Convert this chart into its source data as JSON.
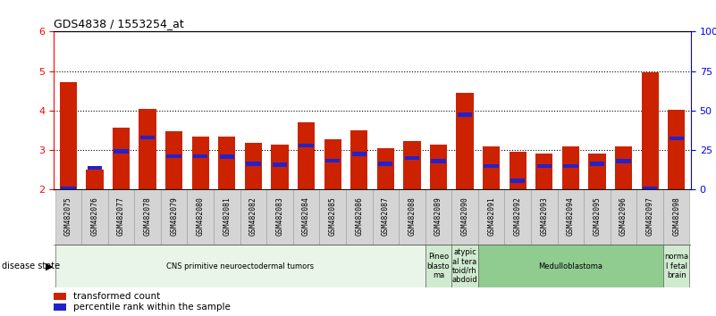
{
  "title": "GDS4838 / 1553254_at",
  "samples": [
    "GSM482075",
    "GSM482076",
    "GSM482077",
    "GSM482078",
    "GSM482079",
    "GSM482080",
    "GSM482081",
    "GSM482082",
    "GSM482083",
    "GSM482084",
    "GSM482085",
    "GSM482086",
    "GSM482087",
    "GSM482088",
    "GSM482089",
    "GSM482090",
    "GSM482091",
    "GSM482092",
    "GSM482093",
    "GSM482094",
    "GSM482095",
    "GSM482096",
    "GSM482097",
    "GSM482098"
  ],
  "red_values": [
    4.72,
    2.5,
    3.57,
    4.05,
    3.48,
    3.35,
    3.35,
    3.18,
    3.15,
    3.7,
    3.27,
    3.5,
    3.05,
    3.22,
    3.13,
    4.45,
    3.1,
    2.95,
    2.92,
    3.1,
    2.92,
    3.1,
    4.98,
    4.02
  ],
  "blue_values": [
    2.02,
    2.55,
    2.97,
    3.32,
    2.85,
    2.85,
    2.83,
    2.65,
    2.63,
    3.12,
    2.73,
    2.9,
    2.65,
    2.8,
    2.72,
    3.9,
    2.6,
    2.22,
    2.6,
    2.6,
    2.65,
    2.72,
    2.02,
    3.3
  ],
  "ylim": [
    2.0,
    6.0
  ],
  "bar_color": "#cc2200",
  "marker_color": "#2222cc",
  "disease_groups": [
    {
      "label": "CNS primitive neuroectodermal tumors",
      "start": 0,
      "end": 14,
      "color": "#e8f5e8"
    },
    {
      "label": "Pineo\nblasto\nma",
      "start": 14,
      "end": 15,
      "color": "#d0ead0"
    },
    {
      "label": "atypic\nal tera\ntoid/rh\nabdoid",
      "start": 15,
      "end": 16,
      "color": "#d0ead0"
    },
    {
      "label": "Medulloblastoma",
      "start": 16,
      "end": 23,
      "color": "#90cc90"
    },
    {
      "label": "norma\nl fetal\nbrain",
      "start": 23,
      "end": 24,
      "color": "#d0ead0"
    }
  ],
  "legend_red": "transformed count",
  "legend_blue": "percentile rank within the sample"
}
